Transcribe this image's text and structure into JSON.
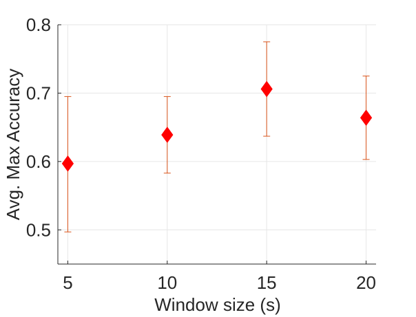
{
  "chart_data": {
    "type": "scatter",
    "title": "",
    "xlabel": "Window size (s)",
    "ylabel": "Avg. Max Accuracy",
    "x": [
      5,
      10,
      15,
      20
    ],
    "y": [
      0.597,
      0.639,
      0.706,
      0.664
    ],
    "error_low": [
      0.497,
      0.583,
      0.637,
      0.603
    ],
    "error_high": [
      0.695,
      0.695,
      0.775,
      0.725
    ],
    "xlim": [
      4.5,
      20.5
    ],
    "ylim": [
      0.45,
      0.8
    ],
    "xticks": [
      5,
      10,
      15,
      20
    ],
    "xtick_labels": [
      "5",
      "10",
      "15",
      "20"
    ],
    "yticks": [
      0.5,
      0.6,
      0.7,
      0.8
    ],
    "ytick_labels": [
      "0.5",
      "0.6",
      "0.7",
      "0.8"
    ],
    "grid": true,
    "marker": "diamond",
    "marker_color": "#ff0000",
    "errorbar_color": "#d95319",
    "grid_color": "#e6e6e6",
    "axis_color": "#262626"
  }
}
